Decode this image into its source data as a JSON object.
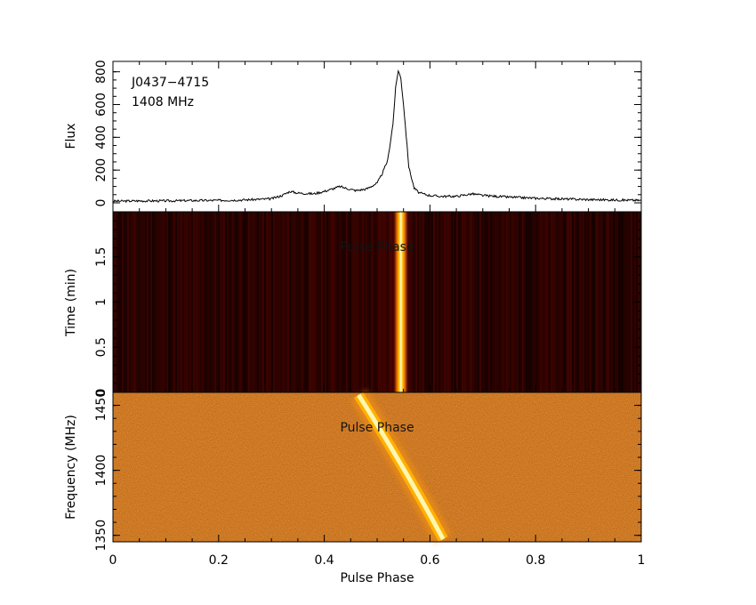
{
  "chart_data": [
    {
      "type": "line",
      "panel": "profile",
      "annotation": [
        "J0437−4715",
        "1408 MHz"
      ],
      "ylabel": "Flux",
      "xlim": [
        0,
        1
      ],
      "ylim": [
        0,
        820
      ],
      "yticks": [
        "0",
        "200",
        "400",
        "600",
        "800"
      ],
      "x": [
        0,
        0.05,
        0.1,
        0.15,
        0.2,
        0.25,
        0.3,
        0.32,
        0.335,
        0.35,
        0.38,
        0.4,
        0.42,
        0.43,
        0.44,
        0.46,
        0.48,
        0.5,
        0.51,
        0.52,
        0.53,
        0.535,
        0.54,
        0.545,
        0.55,
        0.56,
        0.57,
        0.58,
        0.6,
        0.62,
        0.65,
        0.68,
        0.7,
        0.75,
        0.8,
        0.9,
        1.0
      ],
      "y": [
        10,
        12,
        12,
        14,
        15,
        18,
        25,
        45,
        70,
        60,
        55,
        70,
        90,
        100,
        90,
        75,
        85,
        120,
        180,
        260,
        480,
        700,
        810,
        760,
        600,
        220,
        90,
        60,
        45,
        40,
        40,
        55,
        45,
        35,
        28,
        20,
        15
      ]
    },
    {
      "type": "heatmap",
      "panel": "time-phase",
      "ylabel": "Time (min)",
      "overlay_label": "Pulse Phase",
      "xlim": [
        0,
        1
      ],
      "ylim": [
        0,
        2
      ],
      "yticks": [
        "0",
        "0.5",
        "1",
        "1.5"
      ],
      "pulse_center_phase": 0.545,
      "pulse_width_phase": 0.03
    },
    {
      "type": "heatmap",
      "panel": "frequency-phase",
      "ylabel": "Frequency (MHz)",
      "xlabel": "Pulse Phase",
      "overlay_label": "Pulse Phase",
      "xlim": [
        0,
        1
      ],
      "ylim": [
        1345,
        1460
      ],
      "yticks": [
        "1350",
        "1400",
        "1450"
      ],
      "xticks": [
        "0",
        "0.2",
        "0.4",
        "0.6",
        "0.8",
        "1"
      ],
      "dispersed_pulse": [
        {
          "freq": 1458,
          "phase": 0.465
        },
        {
          "freq": 1400,
          "phase": 0.555
        },
        {
          "freq": 1347,
          "phase": 0.625
        }
      ]
    }
  ],
  "colors": {
    "frame": "#000000",
    "bg_time_dark": "#2a0000",
    "bg_freq": "#8a2a05",
    "pulse_core": "#fff8b0",
    "pulse_edge": "#ffb000"
  }
}
